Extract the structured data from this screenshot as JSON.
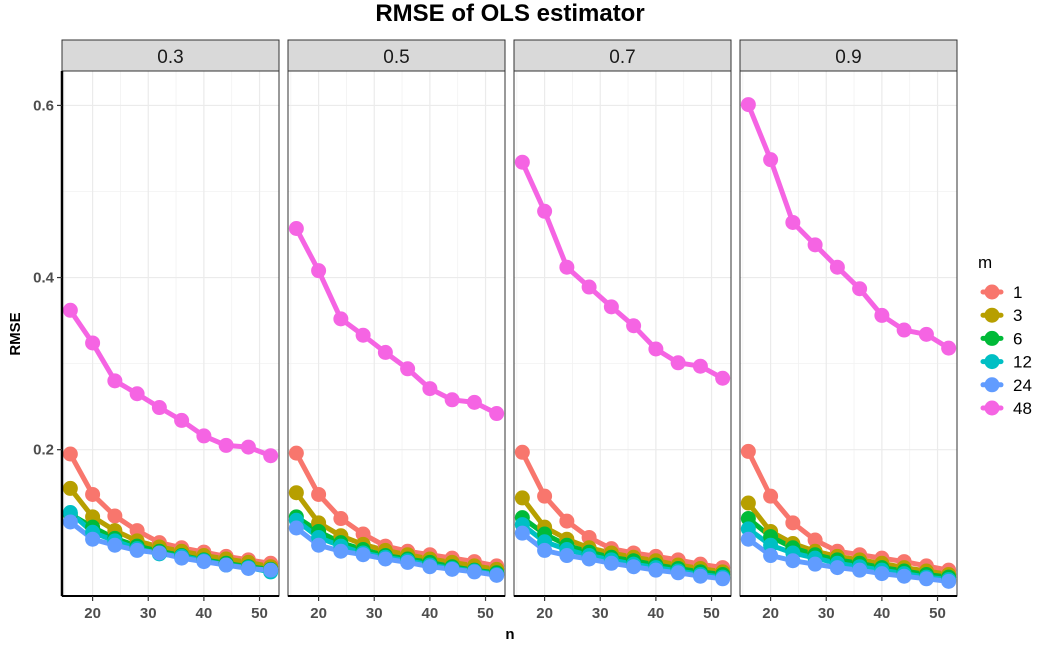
{
  "chart_data": {
    "type": "line",
    "title": "RMSE of OLS estimator",
    "xlabel": "n",
    "ylabel": "RMSE",
    "ylim": [
      0.03,
      0.64
    ],
    "xlim": [
      14.5,
      53.5
    ],
    "x_ticks": [
      20,
      30,
      40,
      50
    ],
    "x_tick_labels": [
      "20",
      "30",
      "40",
      "50"
    ],
    "y_ticks": [
      0.2,
      0.4,
      0.6
    ],
    "y_tick_labels": [
      "0.2",
      "0.4",
      "0.6"
    ],
    "legend_title": "m",
    "legend_position": "right",
    "x": [
      16,
      20,
      24,
      28,
      32,
      36,
      40,
      44,
      48,
      52
    ],
    "facets": [
      {
        "label": "0.3",
        "series": [
          {
            "name": "1",
            "color": "#F8766D",
            "values": [
              0.195,
              0.148,
              0.123,
              0.106,
              0.092,
              0.086,
              0.081,
              0.076,
              0.072,
              0.068
            ]
          },
          {
            "name": "3",
            "color": "#B79F00",
            "values": [
              0.155,
              0.122,
              0.106,
              0.094,
              0.087,
              0.082,
              0.077,
              0.073,
              0.069,
              0.064
            ]
          },
          {
            "name": "6",
            "color": "#00BA38",
            "values": [
              0.125,
              0.11,
              0.097,
              0.088,
              0.082,
              0.077,
              0.072,
              0.068,
              0.064,
              0.061
            ]
          },
          {
            "name": "12",
            "color": "#00BFC4",
            "values": [
              0.127,
              0.104,
              0.094,
              0.085,
              0.079,
              0.076,
              0.071,
              0.066,
              0.063,
              0.058
            ]
          },
          {
            "name": "24",
            "color": "#619CFF",
            "values": [
              0.116,
              0.096,
              0.089,
              0.083,
              0.08,
              0.074,
              0.07,
              0.066,
              0.062,
              0.06
            ]
          },
          {
            "name": "48",
            "color": "#F564E3",
            "values": [
              0.362,
              0.324,
              0.28,
              0.265,
              0.249,
              0.234,
              0.216,
              0.205,
              0.203,
              0.193
            ]
          }
        ]
      },
      {
        "label": "0.5",
        "series": [
          {
            "name": "1",
            "color": "#F8766D",
            "values": [
              0.196,
              0.148,
              0.12,
              0.102,
              0.088,
              0.082,
              0.078,
              0.074,
              0.07,
              0.065
            ]
          },
          {
            "name": "3",
            "color": "#B79F00",
            "values": [
              0.15,
              0.115,
              0.1,
              0.09,
              0.083,
              0.078,
              0.073,
              0.069,
              0.065,
              0.061
            ]
          },
          {
            "name": "6",
            "color": "#00BA38",
            "values": [
              0.122,
              0.105,
              0.092,
              0.084,
              0.077,
              0.073,
              0.069,
              0.064,
              0.06,
              0.057
            ]
          },
          {
            "name": "12",
            "color": "#00BFC4",
            "values": [
              0.118,
              0.098,
              0.088,
              0.08,
              0.075,
              0.071,
              0.066,
              0.062,
              0.059,
              0.055
            ]
          },
          {
            "name": "24",
            "color": "#619CFF",
            "values": [
              0.109,
              0.089,
              0.082,
              0.078,
              0.073,
              0.069,
              0.064,
              0.061,
              0.058,
              0.054
            ]
          },
          {
            "name": "48",
            "color": "#F564E3",
            "values": [
              0.457,
              0.408,
              0.352,
              0.333,
              0.313,
              0.294,
              0.271,
              0.258,
              0.255,
              0.242
            ]
          }
        ]
      },
      {
        "label": "0.7",
        "series": [
          {
            "name": "1",
            "color": "#F8766D",
            "values": [
              0.197,
              0.146,
              0.117,
              0.098,
              0.085,
              0.08,
              0.076,
              0.072,
              0.067,
              0.063
            ]
          },
          {
            "name": "3",
            "color": "#B79F00",
            "values": [
              0.144,
              0.11,
              0.096,
              0.086,
              0.08,
              0.075,
              0.071,
              0.066,
              0.062,
              0.058
            ]
          },
          {
            "name": "6",
            "color": "#00BA38",
            "values": [
              0.121,
              0.102,
              0.089,
              0.081,
              0.075,
              0.071,
              0.066,
              0.062,
              0.058,
              0.055
            ]
          },
          {
            "name": "12",
            "color": "#00BFC4",
            "values": [
              0.113,
              0.093,
              0.084,
              0.077,
              0.072,
              0.067,
              0.063,
              0.059,
              0.055,
              0.052
            ]
          },
          {
            "name": "24",
            "color": "#619CFF",
            "values": [
              0.103,
              0.083,
              0.077,
              0.073,
              0.068,
              0.064,
              0.06,
              0.057,
              0.053,
              0.05
            ]
          },
          {
            "name": "48",
            "color": "#F564E3",
            "values": [
              0.534,
              0.477,
              0.412,
              0.389,
              0.366,
              0.344,
              0.317,
              0.301,
              0.297,
              0.283
            ]
          }
        ]
      },
      {
        "label": "0.9",
        "series": [
          {
            "name": "1",
            "color": "#F8766D",
            "values": [
              0.198,
              0.146,
              0.115,
              0.095,
              0.082,
              0.078,
              0.074,
              0.07,
              0.065,
              0.06
            ]
          },
          {
            "name": "3",
            "color": "#B79F00",
            "values": [
              0.138,
              0.105,
              0.091,
              0.082,
              0.076,
              0.072,
              0.068,
              0.063,
              0.059,
              0.055
            ]
          },
          {
            "name": "6",
            "color": "#00BA38",
            "values": [
              0.12,
              0.099,
              0.086,
              0.078,
              0.072,
              0.068,
              0.063,
              0.059,
              0.055,
              0.052
            ]
          },
          {
            "name": "12",
            "color": "#00BFC4",
            "values": [
              0.108,
              0.089,
              0.08,
              0.074,
              0.068,
              0.064,
              0.06,
              0.056,
              0.052,
              0.049
            ]
          },
          {
            "name": "24",
            "color": "#619CFF",
            "values": [
              0.096,
              0.077,
              0.071,
              0.067,
              0.063,
              0.06,
              0.056,
              0.053,
              0.05,
              0.047
            ]
          },
          {
            "name": "48",
            "color": "#F564E3",
            "values": [
              0.601,
              0.537,
              0.464,
              0.438,
              0.412,
              0.387,
              0.356,
              0.339,
              0.334,
              0.318
            ]
          }
        ]
      }
    ],
    "legend": [
      {
        "label": "1",
        "color": "#F8766D"
      },
      {
        "label": "3",
        "color": "#B79F00"
      },
      {
        "label": "6",
        "color": "#00BA38"
      },
      {
        "label": "12",
        "color": "#00BFC4"
      },
      {
        "label": "24",
        "color": "#619CFF"
      },
      {
        "label": "48",
        "color": "#F564E3"
      }
    ]
  }
}
